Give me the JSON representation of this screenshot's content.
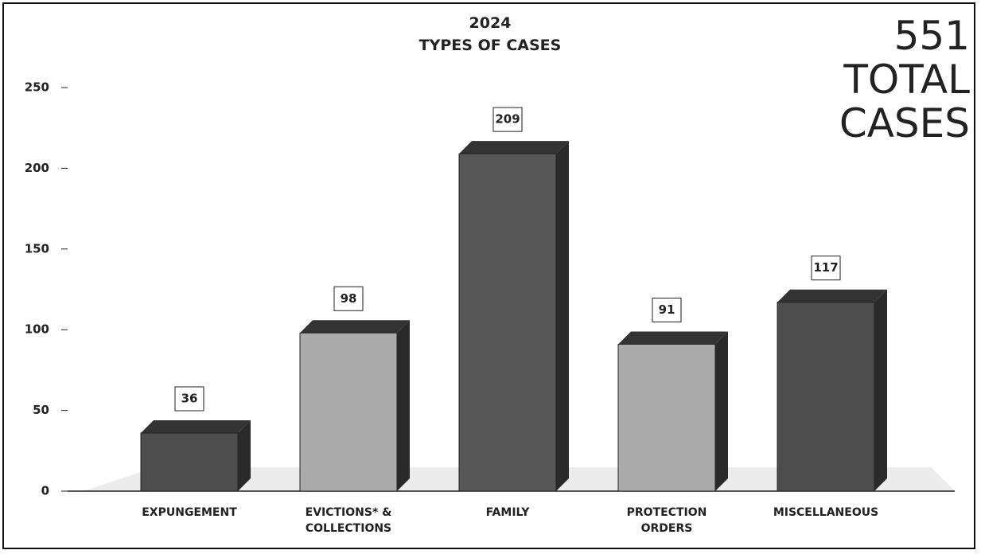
{
  "chart_data": {
    "type": "bar",
    "title": "2024",
    "subtitle": "TYPES OF CASES",
    "annotation": "551 TOTAL CASES",
    "categories": [
      "EXPUNGEMENT",
      "EVICTIONS* & COLLECTIONS",
      "FAMILY",
      "PROTECTION ORDERS",
      "MISCELLANEOUS"
    ],
    "values": [
      36,
      98,
      209,
      91,
      117
    ],
    "colors": [
      "#4d4d4d",
      "#ababab",
      "#585858",
      "#ababab",
      "#4d4d4d"
    ],
    "ylim": [
      0,
      250
    ],
    "yticks": [
      0,
      50,
      100,
      150,
      200,
      250
    ],
    "grid": false
  }
}
